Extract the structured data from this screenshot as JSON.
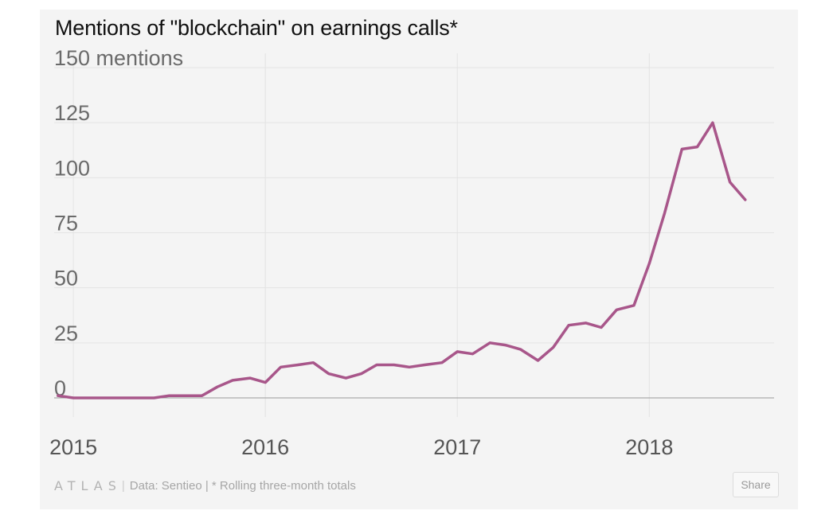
{
  "header": {
    "title": "Mentions of \"blockchain\" on earnings calls*"
  },
  "footer": {
    "logo_text": "ATLAS",
    "separator": "|",
    "source": "Data:  Sentieo | * Rolling three-month totals",
    "share_label": "Share"
  },
  "colors": {
    "line": "#a8568a",
    "background": "#f4f4f4",
    "grid": "#e3e3e3",
    "zero_line": "#999999"
  },
  "chart_data": {
    "type": "line",
    "title": "Mentions of \"blockchain\" on earnings calls*",
    "xlabel": "",
    "ylabel": "mentions",
    "ylim": [
      0,
      150
    ],
    "xlim": [
      2014.9,
      2018.65
    ],
    "grid": true,
    "yticks": [
      0,
      25,
      50,
      75,
      100,
      125,
      150
    ],
    "ytick_labels": [
      "0",
      "25",
      "50",
      "75",
      "100",
      "125",
      "150 mentions"
    ],
    "xticks": [
      2015,
      2016,
      2017,
      2018
    ],
    "xtick_labels": [
      "2015",
      "2016",
      "2017",
      "2018"
    ],
    "series": [
      {
        "x": [
          2014.92,
          2015.0,
          2015.08,
          2015.17,
          2015.25,
          2015.33,
          2015.42,
          2015.5,
          2015.58,
          2015.67,
          2015.75,
          2015.83,
          2015.92,
          2016.0,
          2016.08,
          2016.17,
          2016.25,
          2016.33,
          2016.42,
          2016.5,
          2016.58,
          2016.67,
          2016.75,
          2016.83,
          2016.92,
          2017.0,
          2017.08,
          2017.17,
          2017.25,
          2017.33,
          2017.42,
          2017.5,
          2017.58,
          2017.67,
          2017.75,
          2017.83,
          2017.92,
          2018.0,
          2018.08,
          2018.17,
          2018.25,
          2018.33,
          2018.42,
          2018.5
        ],
        "y": [
          1,
          0,
          0,
          0,
          0,
          0,
          0,
          1,
          1,
          1,
          5,
          8,
          9,
          7,
          14,
          15,
          16,
          11,
          9,
          11,
          15,
          15,
          14,
          15,
          16,
          21,
          20,
          25,
          24,
          22,
          17,
          23,
          33,
          34,
          32,
          40,
          42,
          61,
          84,
          113,
          114,
          125,
          98,
          90
        ]
      }
    ]
  }
}
